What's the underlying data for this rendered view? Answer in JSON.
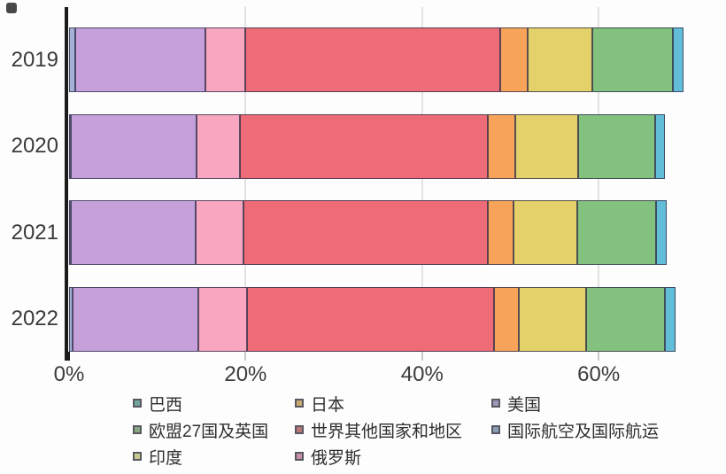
{
  "chart_data": {
    "type": "bar",
    "orientation": "horizontal-stacked",
    "categories": [
      "2019",
      "2020",
      "2021",
      "2022"
    ],
    "series": [
      {
        "name": "国际航空及国际航运",
        "color": "#a4b0d4",
        "legend_color": "#8b9cb5",
        "values": [
          0.7,
          0.1,
          0.1,
          0.4
        ]
      },
      {
        "name": "美国",
        "color": "#c5a0da",
        "legend_color": "#9e96b4",
        "values": [
          14.7,
          14.2,
          14.1,
          14.2
        ]
      },
      {
        "name": "俄罗斯",
        "color": "#f9a6c1",
        "legend_color": "#c98fa6",
        "values": [
          4.6,
          5.0,
          5.5,
          5.6
        ]
      },
      {
        "name": "世界其他国家和地区",
        "color": "#ee6c77",
        "legend_color": "#b87878",
        "values": [
          28.8,
          28.0,
          27.6,
          27.9
        ]
      },
      {
        "name": "日本",
        "color": "#f8a35a",
        "legend_color": "#c9a96e",
        "values": [
          3.2,
          3.2,
          3.0,
          2.9
        ]
      },
      {
        "name": "印度",
        "color": "#e4d169",
        "legend_color": "#c9c98e",
        "values": [
          7.3,
          7.1,
          7.2,
          7.6
        ]
      },
      {
        "name": "欧盟27国及英国",
        "color": "#83c17e",
        "legend_color": "#87a882",
        "values": [
          9.1,
          8.7,
          8.9,
          8.9
        ]
      },
      {
        "name": "巴西",
        "color": "#62bdd8",
        "legend_color": "#74a59b",
        "values": [
          1.2,
          1.1,
          1.2,
          1.2
        ]
      }
    ],
    "xtick_labels": [
      "0%",
      "20%",
      "40%",
      "60%"
    ],
    "xtick_values": [
      0,
      20,
      40,
      60
    ],
    "xlim": [
      0,
      71
    ],
    "grid": true,
    "legend_position": "bottom",
    "legend_columns": [
      [
        "巴西",
        "欧盟27国及英国",
        "印度"
      ],
      [
        "日本",
        "世界其他国家和地区",
        "俄罗斯"
      ],
      [
        "美国",
        "国际航空及国际航运"
      ]
    ]
  }
}
